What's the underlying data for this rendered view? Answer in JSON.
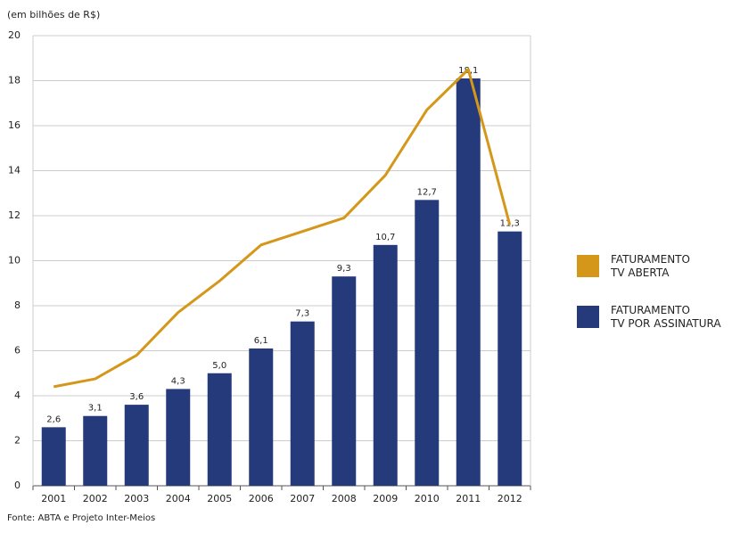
{
  "chart_data": {
    "type": "bar_line",
    "title": "(em bilhões de R$)",
    "source": "Fonte: ABTA e Projeto Inter-Meios",
    "categories": [
      "2001",
      "2002",
      "2003",
      "2004",
      "2005",
      "2006",
      "2007",
      "2008",
      "2009",
      "2010",
      "2011",
      "2012"
    ],
    "series": [
      {
        "name": "FATURAMENTO\nTV ABERTA",
        "color": "#d4971a",
        "kind": "line",
        "values": [
          4.4,
          4.75,
          5.8,
          7.7,
          9.1,
          10.7,
          11.3,
          11.9,
          13.8,
          16.7,
          18.5,
          11.6
        ]
      },
      {
        "name": "FATURAMENTO\nTV POR ASSINATURA",
        "color": "#253a7a",
        "kind": "bar",
        "values": [
          2.6,
          3.1,
          3.6,
          4.3,
          5.0,
          6.1,
          7.3,
          9.3,
          10.7,
          12.7,
          18.1,
          11.3
        ],
        "value_labels": [
          "2,6",
          "3,1",
          "3,6",
          "4,3",
          "5,0",
          "6,1",
          "7,3",
          "9,3",
          "10,7",
          "12,7",
          "18,1",
          "11,3"
        ]
      }
    ],
    "ylim": [
      0,
      20
    ],
    "yticks": [
      0,
      2,
      4,
      6,
      8,
      10,
      12,
      14,
      16,
      18,
      20
    ],
    "grid": true
  }
}
